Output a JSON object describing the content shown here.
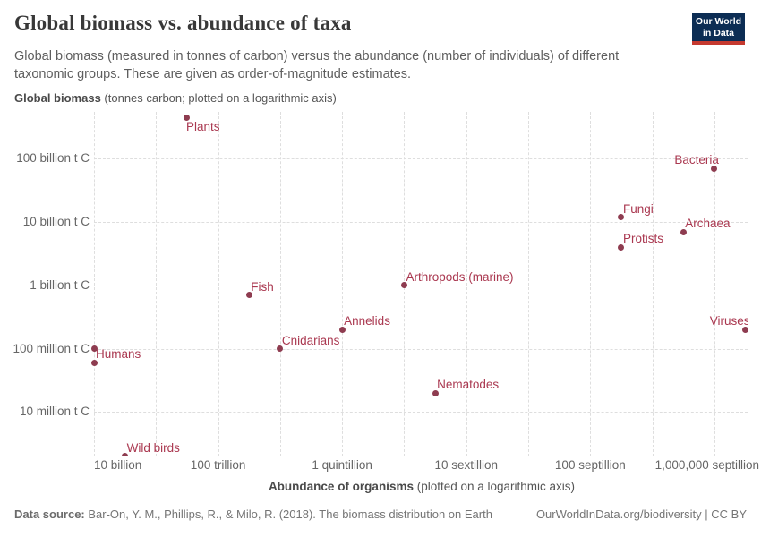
{
  "header": {
    "title": "Global biomass vs. abundance of taxa",
    "subtitle": "Global biomass (measured in tonnes of carbon) versus the abundance (number of individuals) of different taxonomic groups. These are given as order-of-magnitude estimates.",
    "logo": {
      "line1": "Our World",
      "line2": "in Data"
    }
  },
  "axes": {
    "y_title_bold": "Global biomass",
    "y_title_rest": " (tonnes carbon; plotted on a logarithmic axis)",
    "x_title_bold": "Abundance of organisms",
    "x_title_rest": " (plotted on a logarithmic axis)",
    "y_ticks": [
      {
        "label": "100 billion t C",
        "log10": 11
      },
      {
        "label": "10 billion t C",
        "log10": 10
      },
      {
        "label": "1 billion t C",
        "log10": 9
      },
      {
        "label": "100 million t C",
        "log10": 8
      },
      {
        "label": "10 million t C",
        "log10": 7
      }
    ],
    "x_ticks": [
      {
        "label": "10 billion",
        "log10": 10,
        "align": "left"
      },
      {
        "label": "100 trillion",
        "log10": 14,
        "align": "center"
      },
      {
        "label": "1 quintillion",
        "log10": 18,
        "align": "center"
      },
      {
        "label": "10 sextillion",
        "log10": 22,
        "align": "center"
      },
      {
        "label": "100 septillion",
        "log10": 26,
        "align": "center"
      },
      {
        "label": "1,000,000 septillion",
        "log10": 30,
        "align": "right"
      }
    ],
    "x_gridline_log10s": [
      10,
      12,
      14,
      16,
      18,
      20,
      22,
      24,
      26,
      28,
      30
    ]
  },
  "chart_data": {
    "type": "scatter",
    "x_scale": "log",
    "y_scale": "log",
    "title": "Global biomass vs. abundance of taxa",
    "xlabel": "Abundance of organisms (plotted on a logarithmic axis)",
    "ylabel": "Global biomass (tonnes carbon; plotted on a logarithmic axis)",
    "grid": "dashed",
    "xlim_log10": [
      10,
      31.07
    ],
    "ylim_log10": [
      6.3,
      11.74
    ],
    "points": [
      {
        "label": "Plants",
        "abundance": 10000000000000.0,
        "biomass_tC": 450000000000.0,
        "label_pos": "below-right"
      },
      {
        "label": "Bacteria",
        "abundance": 1e+30,
        "biomass_tC": 70000000000.0,
        "label_pos": "above-left"
      },
      {
        "label": "Fungi",
        "abundance": 1e+27,
        "biomass_tC": 12000000000.0,
        "label_pos": "above-right"
      },
      {
        "label": "Archaea",
        "abundance": 1e+29,
        "biomass_tC": 7000000000.0,
        "label_pos": "above-right"
      },
      {
        "label": "Protists",
        "abundance": 1e+27,
        "biomass_tC": 4000000000.0,
        "label_pos": "above-right"
      },
      {
        "label": "Arthropods (marine)",
        "abundance": 1e+20,
        "biomass_tC": 1000000000.0,
        "label_pos": "above-right"
      },
      {
        "label": "Fish",
        "abundance": 1000000000000000.0,
        "biomass_tC": 700000000.0,
        "label_pos": "above-right"
      },
      {
        "label": "Annelids",
        "abundance": 1e+18,
        "biomass_tC": 200000000.0,
        "label_pos": "above-right"
      },
      {
        "label": "Viruses",
        "abundance": 1e+31,
        "biomass_tC": 200000000.0,
        "label_pos": "above-left"
      },
      {
        "label": "Cnidarians",
        "abundance": 1e+16,
        "biomass_tC": 100000000.0,
        "label_pos": "above-right"
      },
      {
        "label": "",
        "abundance": 10000000000.0,
        "biomass_tC": 100000000.0,
        "label_pos": "none"
      },
      {
        "label": "Humans",
        "abundance": 10000000000.0,
        "biomass_tC": 60000000.0,
        "label_pos": "above-right"
      },
      {
        "label": "Nematodes",
        "abundance": 1e+21,
        "biomass_tC": 20000000.0,
        "label_pos": "above-right"
      },
      {
        "label": "Wild birds",
        "abundance": 100000000000.0,
        "biomass_tC": 2000000.0,
        "label_pos": "above-right"
      }
    ]
  },
  "footer": {
    "source_label": "Data source:",
    "source_text": " Bar-On, Y. M., Phillips, R., & Milo, R. (2018). The biomass distribution on Earth",
    "credit": "OurWorldInData.org/biodiversity | CC BY"
  },
  "colors": {
    "point": "#8e3c50",
    "point_label": "#aa3850",
    "grid": "#dedede",
    "tick_label": "#666666",
    "title": "#383838",
    "logo_bg": "#0c2d54",
    "logo_bar": "#c5392f"
  }
}
